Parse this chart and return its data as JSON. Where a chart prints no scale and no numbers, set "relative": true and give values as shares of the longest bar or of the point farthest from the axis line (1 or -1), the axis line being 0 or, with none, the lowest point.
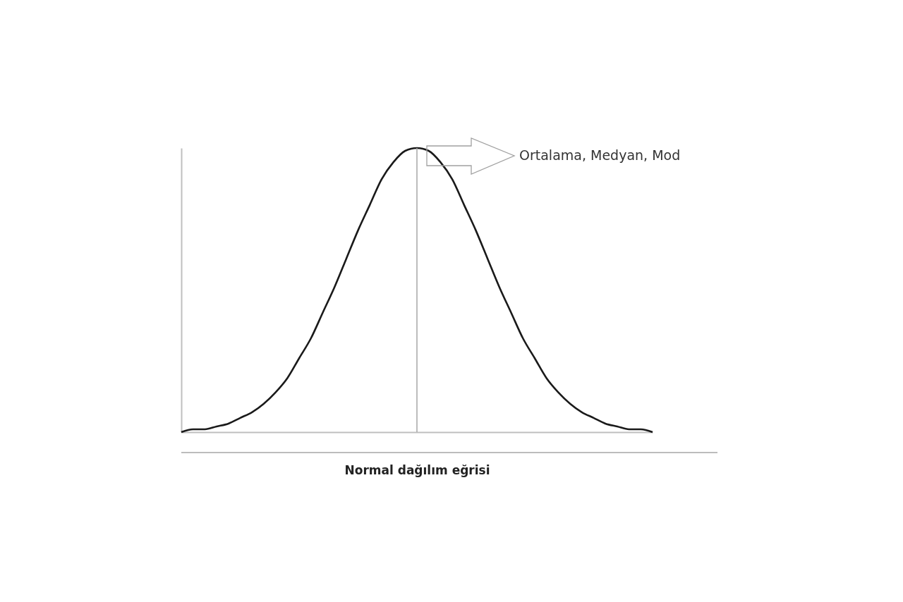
{
  "chart_data": {
    "type": "line",
    "relative": true,
    "xlabel": "Normal dağılım eğrisi",
    "categories": [
      null,
      null,
      null,
      null,
      null,
      null,
      null,
      null,
      null,
      null,
      null,
      null,
      null,
      null,
      null,
      null,
      null,
      null,
      null,
      null,
      null,
      null,
      null,
      null,
      null,
      null,
      null,
      null,
      null,
      null,
      null,
      null,
      null,
      null,
      null,
      null,
      null,
      null,
      null,
      null,
      null
    ],
    "series": [
      {
        "color": "#1a1a1a",
        "values": [
          0,
          0.01,
          0.01,
          0.02,
          0.03,
          0.05,
          0.07,
          0.1,
          0.14,
          0.19,
          0.26,
          0.33,
          0.42,
          0.51,
          0.61,
          0.71,
          0.8,
          0.89,
          0.95,
          0.99,
          1,
          0.99,
          0.95,
          0.89,
          0.8,
          0.71,
          0.61,
          0.51,
          0.42,
          0.33,
          0.26,
          0.19,
          0.14,
          0.1,
          0.07,
          0.05,
          0.03,
          0.02,
          0.01,
          0.01,
          0
        ]
      }
    ],
    "annotations": [
      "Ortalama, Medyan, Mod"
    ],
    "grid": false,
    "marker": "none",
    "line_style": "solid"
  }
}
